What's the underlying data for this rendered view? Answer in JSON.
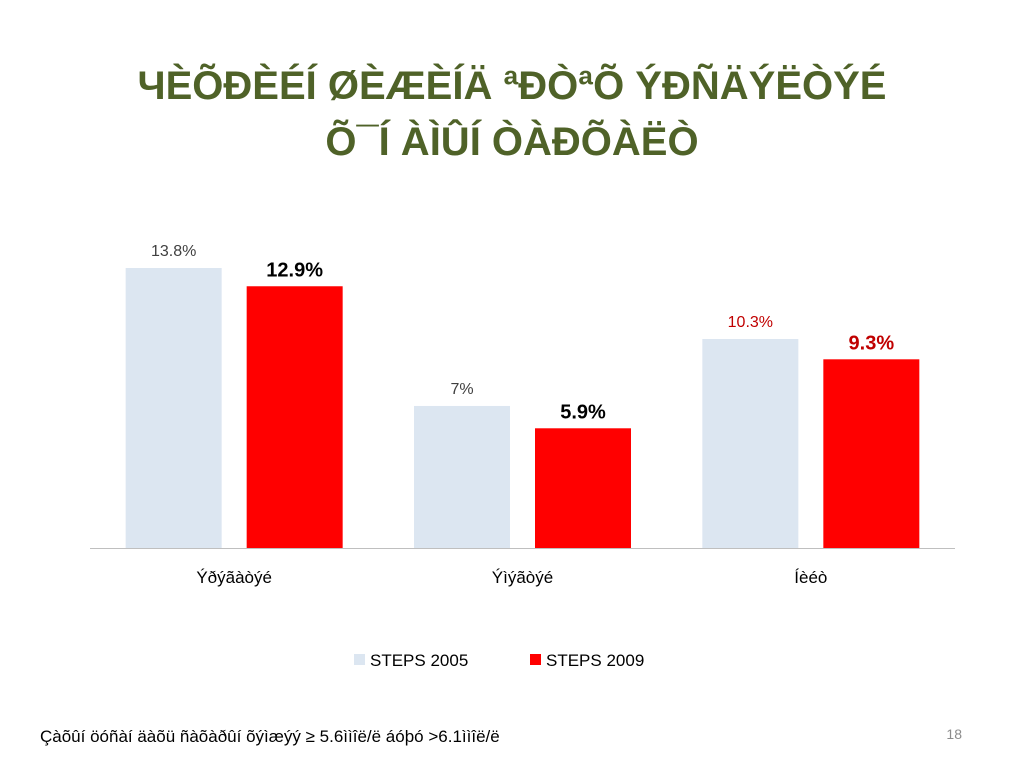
{
  "slide": {
    "title_line1": "ЧÈÕÐÈÉÍ ØÈÆÈÍÄ ªÐÒªÕ ÝÐÑÄÝËÒÝÉ",
    "title_line2": "Õ¯Í ÀÌÛÍ ÒÀÐÕÀËÒ",
    "footnote": "Çàõûí  öóñàí äàõü ñàõàðûí õýìæýý ≥ 5.6ììîë/ë áóþó >6.1ììîë/ë",
    "page_number": "18"
  },
  "colors": {
    "title": "#4f6228",
    "steps_2005": "#dce6f1",
    "steps_2009": "#ff0000",
    "label_2005": "#404040",
    "label_2009_bold": "#000000",
    "label_highlight": "#c00000"
  },
  "chart_data": {
    "type": "bar",
    "categories": [
      "Ýðýãàòýé",
      "Ýìýãòýé",
      "Íèéò"
    ],
    "series": [
      {
        "name": "STEPS 2005",
        "values": [
          13.8,
          7,
          10.3
        ],
        "labels": [
          "13.8%",
          "7%",
          "10.3%"
        ]
      },
      {
        "name": "STEPS 2009",
        "values": [
          12.9,
          5.9,
          9.3
        ],
        "labels": [
          "12.9%",
          "5.9%",
          "9.3%"
        ]
      }
    ],
    "ylim": [
      0,
      15
    ],
    "grid": false,
    "legend_position": "bottom"
  }
}
